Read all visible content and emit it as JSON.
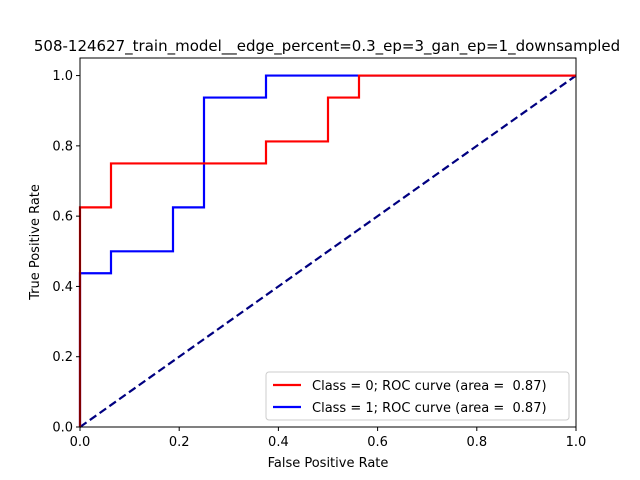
{
  "chart_data": {
    "type": "line",
    "title": "508-124627_train_model__edge_percent=0.3_ep=3_gan_ep=1_downsampled",
    "xlabel": "False Positive Rate",
    "ylabel": "True Positive Rate",
    "xlim": [
      0,
      1
    ],
    "ylim": [
      0,
      1.05
    ],
    "xticks": [
      0,
      0.2,
      0.4,
      0.6,
      0.8,
      1
    ],
    "xtick_labels": [
      "0.0",
      "0.2",
      "0.4",
      "0.6",
      "0.8",
      "1.0"
    ],
    "yticks": [
      0,
      0.2,
      0.4,
      0.6,
      0.8,
      1
    ],
    "ytick_labels": [
      "0.0",
      "0.2",
      "0.4",
      "0.6",
      "0.8",
      "1.0"
    ],
    "grid": false,
    "legend_position": "lower right",
    "series": [
      {
        "name": "Class = 0; ROC curve (area =  0.87)",
        "color": "#ff0000",
        "style": "solid",
        "x": [
          0,
          0,
          0,
          0.0625,
          0.0625,
          0.375,
          0.375,
          0.5,
          0.5,
          0.5625,
          0.5625,
          1
        ],
        "y": [
          0,
          0.4375,
          0.625,
          0.625,
          0.75,
          0.75,
          0.8125,
          0.8125,
          0.9375,
          0.9375,
          1,
          1
        ]
      },
      {
        "name": "Class = 1; ROC curve (area =  0.87)",
        "color": "#0000ff",
        "style": "solid",
        "x": [
          0,
          0,
          0.0625,
          0.0625,
          0.1875,
          0.1875,
          0.25,
          0.25,
          0.375,
          0.375,
          1
        ],
        "y": [
          0,
          0.4375,
          0.4375,
          0.5,
          0.5,
          0.625,
          0.625,
          0.9375,
          0.9375,
          1,
          1
        ]
      },
      {
        "color": "#000080",
        "style": "dashed",
        "x": [
          0,
          1
        ],
        "y": [
          0,
          1
        ]
      }
    ]
  }
}
